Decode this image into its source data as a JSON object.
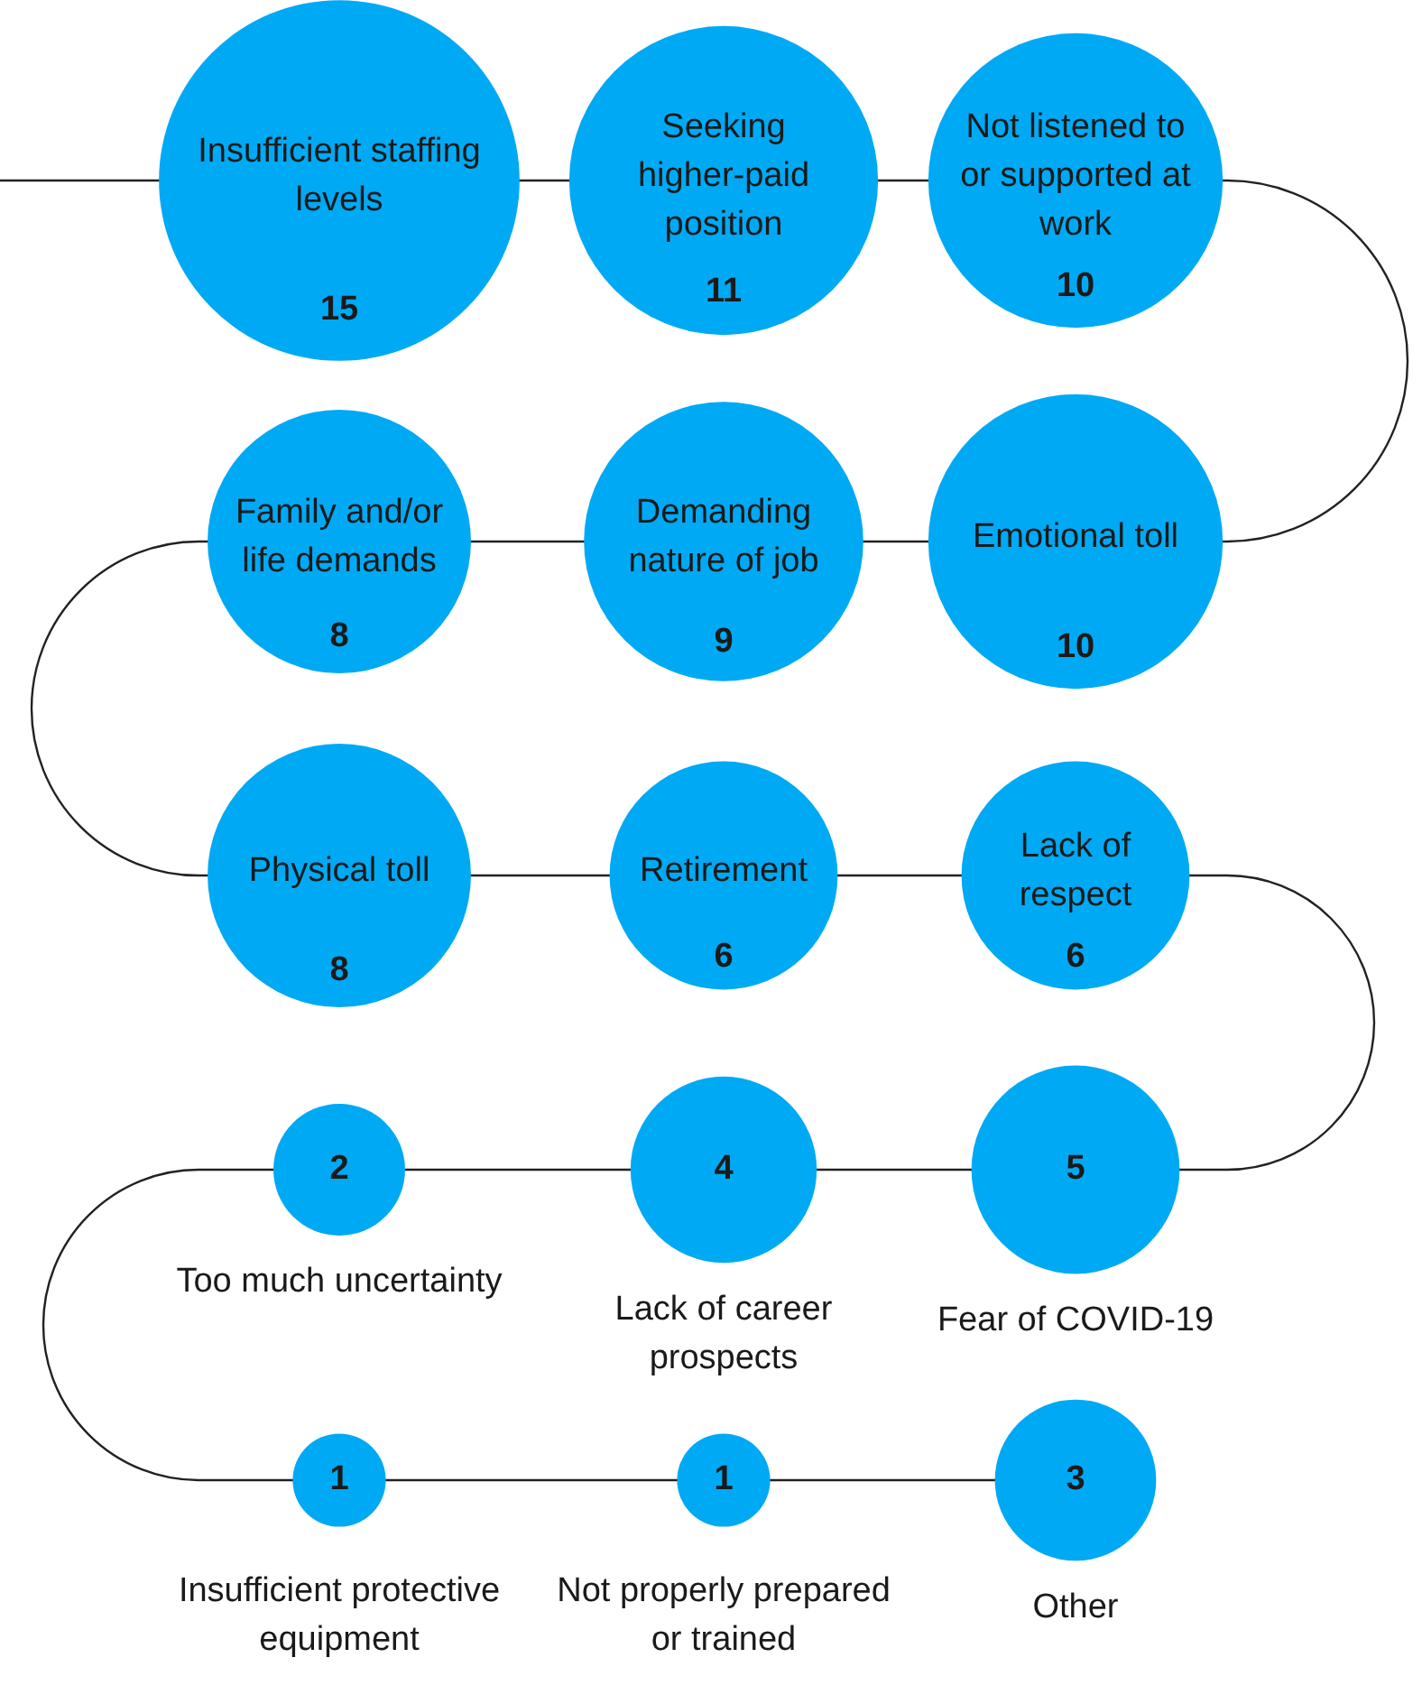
{
  "chart_data": {
    "type": "other",
    "categories": [
      "Insufficient staffing levels",
      "Seeking higher-paid position",
      "Not listened to or supported at work",
      "Emotional toll",
      "Demanding nature of job",
      "Family and/or life demands",
      "Physical toll",
      "Retirement",
      "Lack of respect",
      "Fear of COVID-19",
      "Lack of career prospects",
      "Too much uncertainty",
      "Insufficient protective equipment",
      "Not properly prepared or trained",
      "Other"
    ],
    "values": [
      15,
      11,
      10,
      10,
      9,
      8,
      8,
      6,
      6,
      5,
      4,
      2,
      1,
      1,
      3
    ],
    "color": "#00a9f4",
    "data_labels": true
  }
}
